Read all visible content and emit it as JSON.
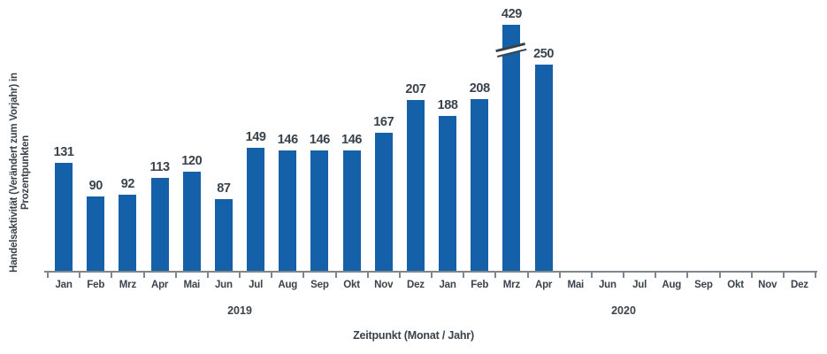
{
  "chart_data": {
    "type": "bar",
    "title": "",
    "xlabel": "Zeitpunkt (Monat / Jahr)",
    "ylabel_line1": "Handelsaktivität (Verändert zum Vorjahr) in",
    "ylabel_line2": "Prozentpunkten",
    "ylim": [
      0,
      300
    ],
    "grid": false,
    "legend": "none",
    "bar_color": "#1561a9",
    "label_color": "#3a434b",
    "axis_color": "#7f868c",
    "years": [
      {
        "label": "2019"
      },
      {
        "label": "2020"
      }
    ],
    "categories": [
      "Jan",
      "Feb",
      "Mrz",
      "Apr",
      "Mai",
      "Jun",
      "Jul",
      "Aug",
      "Sep",
      "Okt",
      "Nov",
      "Dez",
      "Jan",
      "Feb",
      "Mrz",
      "Apr",
      "Mai",
      "Jun",
      "Jul",
      "Aug",
      "Sep",
      "Okt",
      "Nov",
      "Dez"
    ],
    "points": [
      {
        "month": "Jan",
        "year": "2019",
        "value": 131
      },
      {
        "month": "Feb",
        "year": "2019",
        "value": 90
      },
      {
        "month": "Mrz",
        "year": "2019",
        "value": 92
      },
      {
        "month": "Apr",
        "year": "2019",
        "value": 113
      },
      {
        "month": "Mai",
        "year": "2019",
        "value": 120
      },
      {
        "month": "Jun",
        "year": "2019",
        "value": 87
      },
      {
        "month": "Jul",
        "year": "2019",
        "value": 149
      },
      {
        "month": "Aug",
        "year": "2019",
        "value": 146
      },
      {
        "month": "Sep",
        "year": "2019",
        "value": 146
      },
      {
        "month": "Okt",
        "year": "2019",
        "value": 146
      },
      {
        "month": "Nov",
        "year": "2019",
        "value": 167
      },
      {
        "month": "Dez",
        "year": "2019",
        "value": 207
      },
      {
        "month": "Jan",
        "year": "2020",
        "value": 188
      },
      {
        "month": "Feb",
        "year": "2020",
        "value": 208
      },
      {
        "month": "Mrz",
        "year": "2020",
        "value": 429,
        "broken": true
      },
      {
        "month": "Apr",
        "year": "2020",
        "value": 250
      },
      {
        "month": "Mai",
        "year": "2020",
        "value": null
      },
      {
        "month": "Jun",
        "year": "2020",
        "value": null
      },
      {
        "month": "Jul",
        "year": "2020",
        "value": null
      },
      {
        "month": "Aug",
        "year": "2020",
        "value": null
      },
      {
        "month": "Sep",
        "year": "2020",
        "value": null
      },
      {
        "month": "Okt",
        "year": "2020",
        "value": null
      },
      {
        "month": "Nov",
        "year": "2020",
        "value": null
      },
      {
        "month": "Dez",
        "year": "2020",
        "value": null
      }
    ]
  }
}
